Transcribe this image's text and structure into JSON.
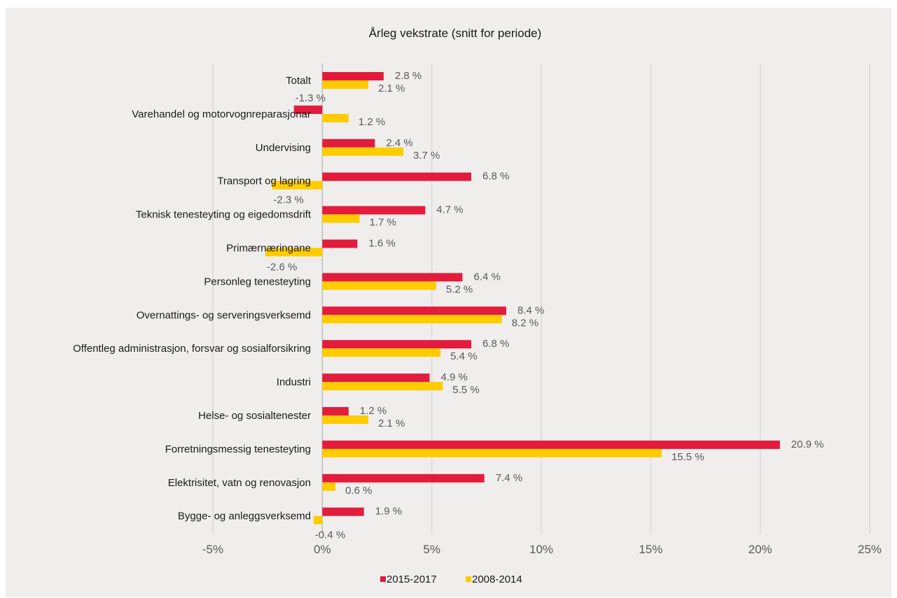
{
  "chart_data": {
    "type": "bar",
    "orientation": "horizontal",
    "title": "Årleg vekstrate (snitt for periode)",
    "categories": [
      "Totalt",
      "Varehandel og motorvognreparasjonar",
      "Undervising",
      "Transport og lagring",
      "Teknisk tenesteyting og eigedomsdrift",
      "Primærnæringane",
      "Personleg tenesteyting",
      "Overnattings- og serveringsverksemd",
      "Offentleg administrasjon, forsvar og sosialforsikring",
      "Industri",
      "Helse- og sosialtenester",
      "Forretningsmessig tenesteyting",
      "Elektrisitet, vatn og renovasjon",
      "Bygge- og anleggsverksemd"
    ],
    "series": [
      {
        "name": "2015-2017",
        "color": "#e31b3c",
        "values": [
          2.8,
          -1.3,
          2.4,
          6.8,
          4.7,
          1.6,
          6.4,
          8.4,
          6.8,
          4.9,
          1.2,
          20.9,
          7.4,
          1.9
        ],
        "labels": [
          "2.8 %",
          "-1.3 %",
          "2.4 %",
          "6.8 %",
          "4.7 %",
          "1.6 %",
          "6.4 %",
          "8.4 %",
          "6.8 %",
          "4.9 %",
          "1.2 %",
          "20.9 %",
          "7.4 %",
          "1.9 %"
        ]
      },
      {
        "name": "2008-2014",
        "color": "#ffcc00",
        "values": [
          2.1,
          1.2,
          3.7,
          -2.3,
          1.7,
          -2.6,
          5.2,
          8.2,
          5.4,
          5.5,
          2.1,
          15.5,
          0.6,
          -0.4
        ],
        "labels": [
          "2.1 %",
          "1.2 %",
          "3.7 %",
          "-2.3 %",
          "1.7 %",
          "-2.6 %",
          "5.2 %",
          "8.2 %",
          "5.4 %",
          "5.5 %",
          "2.1 %",
          "15.5 %",
          "0.6 %",
          "-0.4 %"
        ]
      }
    ],
    "xlim": [
      -5,
      25
    ],
    "xticks": [
      -5,
      0,
      5,
      10,
      15,
      20,
      25
    ],
    "xtick_labels": [
      "-5%",
      "0%",
      "5%",
      "10%",
      "15%",
      "20%",
      "25%"
    ],
    "grid": "vertical",
    "legend": "bottom"
  }
}
